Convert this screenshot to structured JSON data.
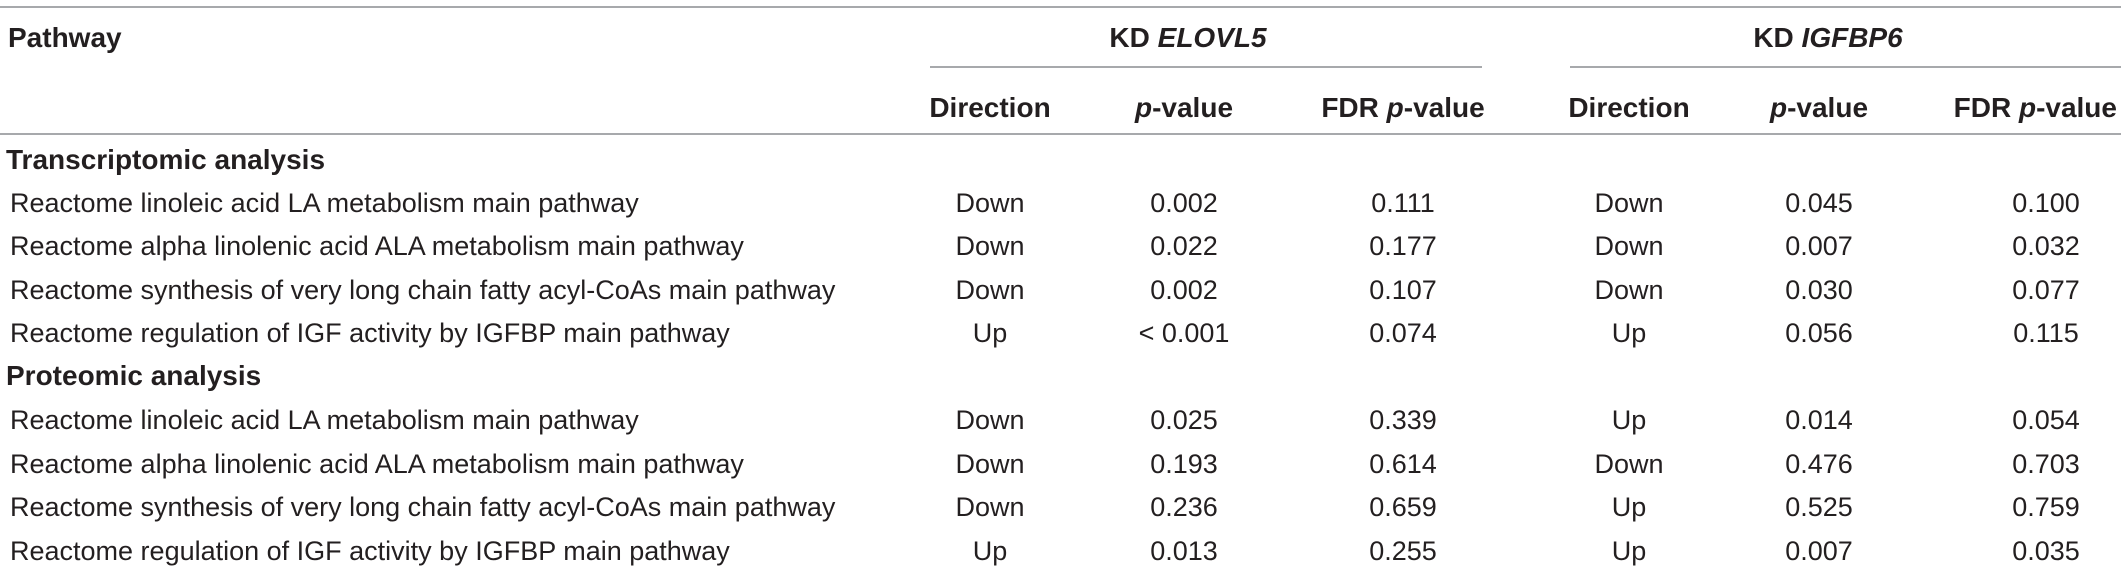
{
  "header": {
    "pathway": "Pathway",
    "group1_prefix": "KD ",
    "group1_gene": "ELOVL5",
    "group2_prefix": "KD ",
    "group2_gene": "IGFBP6",
    "direction": "Direction",
    "p_italic": "p",
    "p_suffix": "-value",
    "fdr_prefix": "FDR "
  },
  "sections": [
    {
      "title": "Transcriptomic analysis",
      "rows": [
        {
          "pathway": "Reactome linoleic acid LA metabolism main pathway",
          "elovl5": [
            "Down",
            "0.002",
            "0.111"
          ],
          "igfbp6": [
            "Down",
            "0.045",
            "0.100"
          ]
        },
        {
          "pathway": "Reactome alpha linolenic acid ALA metabolism main pathway",
          "elovl5": [
            "Down",
            "0.022",
            "0.177"
          ],
          "igfbp6": [
            "Down",
            "0.007",
            "0.032"
          ]
        },
        {
          "pathway": "Reactome synthesis of very long chain fatty acyl-CoAs main pathway",
          "elovl5": [
            "Down",
            "0.002",
            "0.107"
          ],
          "igfbp6": [
            "Down",
            "0.030",
            "0.077"
          ]
        },
        {
          "pathway": "Reactome regulation of IGF activity by IGFBP main pathway",
          "elovl5": [
            "Up",
            "< 0.001",
            "0.074"
          ],
          "igfbp6": [
            "Up",
            "0.056",
            "0.115"
          ]
        }
      ]
    },
    {
      "title": "Proteomic analysis",
      "rows": [
        {
          "pathway": "Reactome linoleic acid LA metabolism main pathway",
          "elovl5": [
            "Down",
            "0.025",
            "0.339"
          ],
          "igfbp6": [
            "Up",
            "0.014",
            "0.054"
          ]
        },
        {
          "pathway": "Reactome alpha linolenic acid ALA metabolism main pathway",
          "elovl5": [
            "Down",
            "0.193",
            "0.614"
          ],
          "igfbp6": [
            "Down",
            "0.476",
            "0.703"
          ]
        },
        {
          "pathway": "Reactome synthesis of very long chain fatty acyl-CoAs main pathway",
          "elovl5": [
            "Down",
            "0.236",
            "0.659"
          ],
          "igfbp6": [
            "Up",
            "0.525",
            "0.759"
          ]
        },
        {
          "pathway": "Reactome regulation of IGF activity by IGFBP main pathway",
          "elovl5": [
            "Up",
            "0.013",
            "0.255"
          ],
          "igfbp6": [
            "Up",
            "0.007",
            "0.035"
          ]
        }
      ]
    }
  ]
}
